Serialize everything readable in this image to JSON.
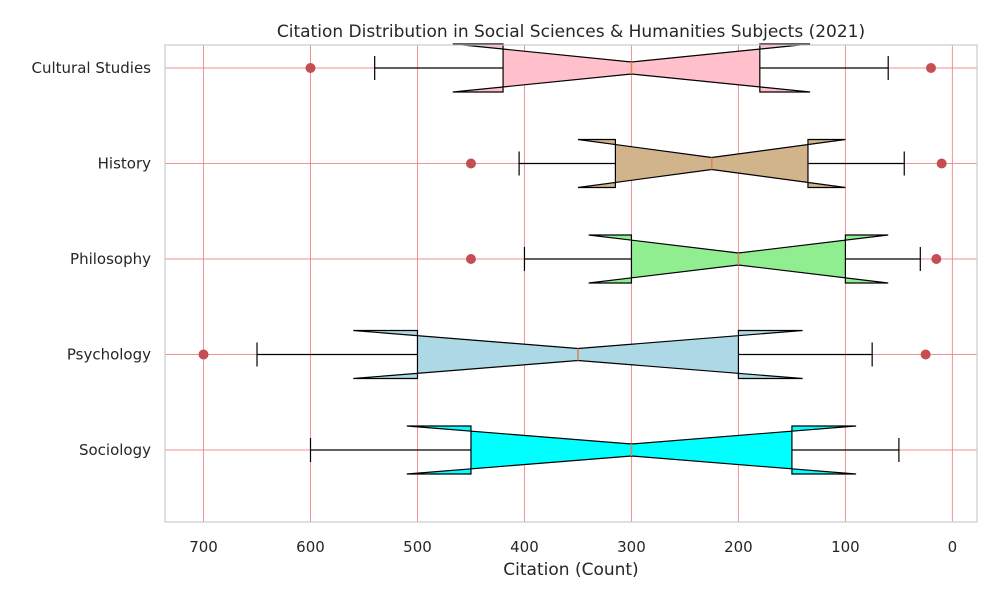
{
  "chart_data": {
    "type": "boxplot",
    "orientation": "horizontal",
    "title": "Citation Distribution in Social Sciences & Humanities Subjects (2021)",
    "xlabel": "Citation (Count)",
    "ylabel": "",
    "x_inverted": true,
    "xlim": [
      -23,
      736
    ],
    "xticks": [
      700,
      600,
      500,
      400,
      300,
      200,
      100,
      0
    ],
    "notched": true,
    "grid": true,
    "grid_color": "#f08080",
    "outlier_color": "#c44e52",
    "median_color": "#dd8452",
    "categories": [
      "Sociology",
      "Psychology",
      "Philosophy",
      "History",
      "Cultural Studies"
    ],
    "series": [
      {
        "category": "Sociology",
        "whisker_low": 50,
        "q1": 150,
        "median": 300,
        "q3": 450,
        "whisker_high": 600,
        "notch_low": 90,
        "notch_high": 510,
        "outliers": [],
        "color": "#00ffff"
      },
      {
        "category": "Psychology",
        "whisker_low": 75,
        "q1": 200,
        "median": 350,
        "q3": 500,
        "whisker_high": 650,
        "notch_low": 140,
        "notch_high": 560,
        "outliers": [
          25,
          700
        ],
        "color": "#add8e6"
      },
      {
        "category": "Philosophy",
        "whisker_low": 30,
        "q1": 100,
        "median": 200,
        "q3": 300,
        "whisker_high": 400,
        "notch_low": 60,
        "notch_high": 340,
        "outliers": [
          15,
          450
        ],
        "color": "#90ee90"
      },
      {
        "category": "History",
        "whisker_low": 45,
        "q1": 135,
        "median": 225,
        "q3": 315,
        "whisker_high": 405,
        "notch_low": 100,
        "notch_high": 350,
        "outliers": [
          10,
          450
        ],
        "color": "#d2b48c"
      },
      {
        "category": "Cultural Studies",
        "whisker_low": 60,
        "q1": 180,
        "median": 300,
        "q3": 420,
        "whisker_high": 540,
        "notch_low": 133,
        "notch_high": 467,
        "outliers": [
          20,
          600
        ],
        "color": "#ffc0cb"
      }
    ]
  }
}
